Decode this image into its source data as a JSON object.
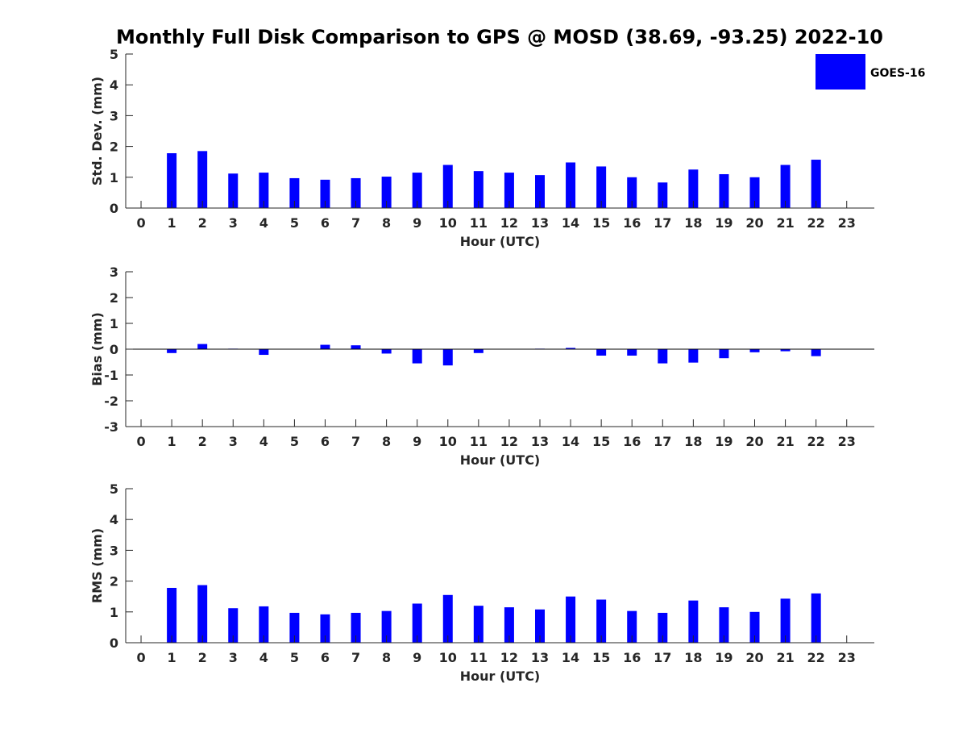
{
  "figure": {
    "title": "Monthly Full Disk Comparison to GPS @ MOSD (38.69, -93.25) 2022-10"
  },
  "legend": {
    "label": "GOES-16",
    "color": "#0000ff",
    "placement": "top-right"
  },
  "colors": {
    "bar": "#0000ff",
    "axis": "#262626"
  },
  "chart_data": [
    {
      "type": "bar",
      "name": "std-dev",
      "title": "Monthly Full Disk Comparison to GPS @ MOSD (38.69, -93.25) 2022-10",
      "xlabel": "Hour (UTC)",
      "ylabel": "Std. Dev. (mm)",
      "categories": [
        "0",
        "1",
        "2",
        "3",
        "4",
        "5",
        "6",
        "7",
        "8",
        "9",
        "10",
        "11",
        "12",
        "13",
        "14",
        "15",
        "16",
        "17",
        "18",
        "19",
        "20",
        "21",
        "22",
        "23"
      ],
      "x": [
        0,
        1,
        2,
        3,
        4,
        5,
        6,
        7,
        8,
        9,
        10,
        11,
        12,
        13,
        14,
        15,
        16,
        17,
        18,
        19,
        20,
        21,
        22,
        23
      ],
      "series": [
        {
          "name": "GOES-16",
          "values": [
            null,
            1.78,
            1.85,
            1.12,
            1.15,
            0.97,
            0.92,
            0.97,
            1.02,
            1.15,
            1.4,
            1.2,
            1.15,
            1.07,
            1.48,
            1.35,
            1.0,
            0.83,
            1.25,
            1.1,
            1.0,
            1.4,
            1.57,
            null
          ]
        }
      ],
      "xlim": [
        -0.5,
        23.9
      ],
      "ylim": [
        0,
        5
      ],
      "yticks": [
        0,
        1,
        2,
        3,
        4,
        5
      ],
      "grid": false,
      "legend": "top-right"
    },
    {
      "type": "bar",
      "name": "bias",
      "xlabel": "Hour (UTC)",
      "ylabel": "Bias (mm)",
      "categories": [
        "0",
        "1",
        "2",
        "3",
        "4",
        "5",
        "6",
        "7",
        "8",
        "9",
        "10",
        "11",
        "12",
        "13",
        "14",
        "15",
        "16",
        "17",
        "18",
        "19",
        "20",
        "21",
        "22",
        "23"
      ],
      "x": [
        0,
        1,
        2,
        3,
        4,
        5,
        6,
        7,
        8,
        9,
        10,
        11,
        12,
        13,
        14,
        15,
        16,
        17,
        18,
        19,
        20,
        21,
        22,
        23
      ],
      "series": [
        {
          "name": "GOES-16",
          "values": [
            null,
            -0.15,
            0.2,
            0.02,
            -0.22,
            0.0,
            0.17,
            0.15,
            -0.17,
            -0.55,
            -0.63,
            -0.15,
            0.0,
            0.02,
            0.05,
            -0.25,
            -0.25,
            -0.55,
            -0.52,
            -0.35,
            -0.12,
            -0.08,
            -0.27,
            null
          ]
        }
      ],
      "xlim": [
        -0.5,
        23.9
      ],
      "ylim": [
        -3,
        3
      ],
      "yticks": [
        -3,
        -2,
        -1,
        0,
        1,
        2,
        3
      ],
      "zero_line": true,
      "grid": false
    },
    {
      "type": "bar",
      "name": "rms",
      "xlabel": "Hour (UTC)",
      "ylabel": "RMS (mm)",
      "categories": [
        "0",
        "1",
        "2",
        "3",
        "4",
        "5",
        "6",
        "7",
        "8",
        "9",
        "10",
        "11",
        "12",
        "13",
        "14",
        "15",
        "16",
        "17",
        "18",
        "19",
        "20",
        "21",
        "22",
        "23"
      ],
      "x": [
        0,
        1,
        2,
        3,
        4,
        5,
        6,
        7,
        8,
        9,
        10,
        11,
        12,
        13,
        14,
        15,
        16,
        17,
        18,
        19,
        20,
        21,
        22,
        23
      ],
      "series": [
        {
          "name": "GOES-16",
          "values": [
            null,
            1.78,
            1.87,
            1.12,
            1.18,
            0.97,
            0.92,
            0.97,
            1.03,
            1.27,
            1.55,
            1.2,
            1.15,
            1.08,
            1.5,
            1.4,
            1.03,
            0.97,
            1.37,
            1.15,
            1.0,
            1.43,
            1.6,
            null
          ]
        }
      ],
      "xlim": [
        -0.5,
        23.9
      ],
      "ylim": [
        0,
        5
      ],
      "yticks": [
        0,
        1,
        2,
        3,
        4,
        5
      ],
      "grid": false
    }
  ]
}
